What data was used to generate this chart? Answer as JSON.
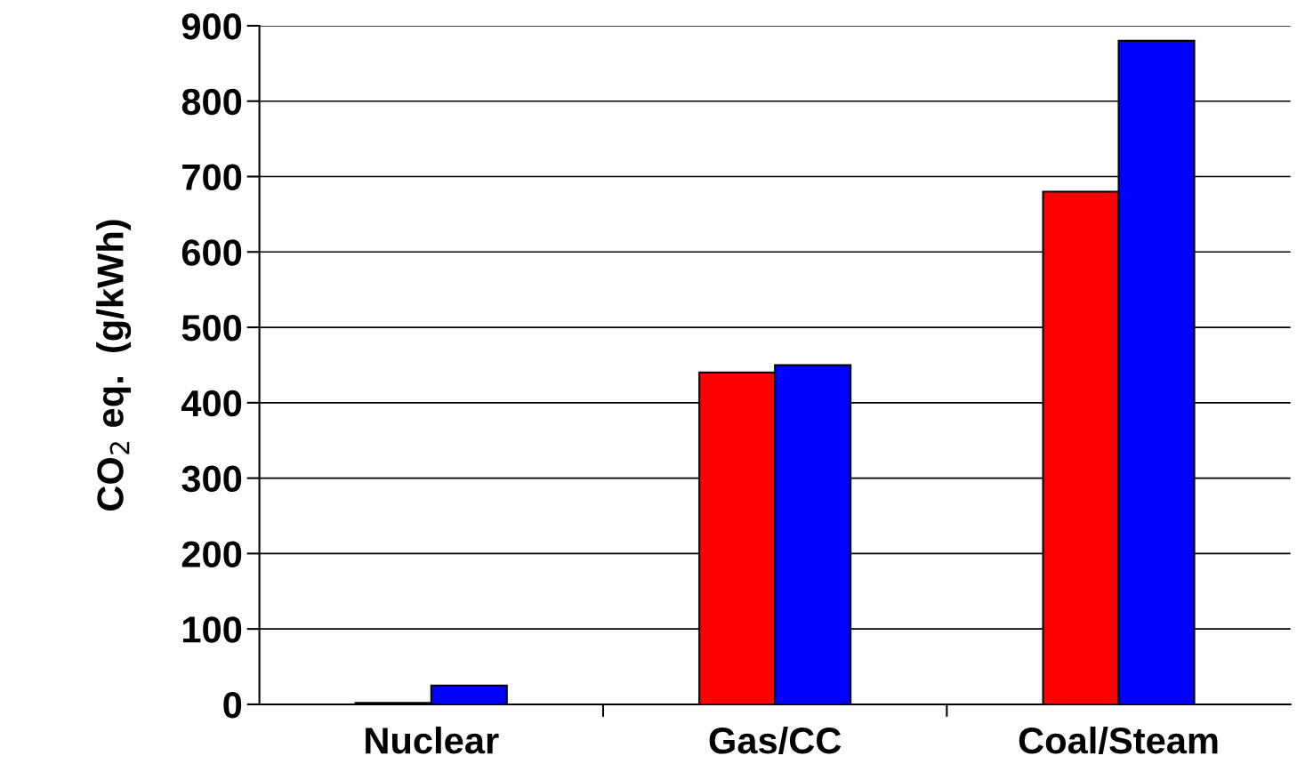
{
  "chart_data": {
    "type": "bar",
    "ylabel": "CO$_{2}$ eq.  (g/kWh)",
    "categories": [
      "Nuclear",
      "Gas/CC",
      "Coal/Steam"
    ],
    "series": [
      {
        "color": "#ff0000",
        "values": [
          2,
          440,
          680
        ]
      },
      {
        "color": "#0000ff",
        "values": [
          25,
          450,
          880
        ]
      }
    ],
    "ylim": [
      0,
      900
    ],
    "yticks": [
      0,
      100,
      200,
      300,
      400,
      500,
      600,
      700,
      800,
      900
    ],
    "grid": "y",
    "legend": false
  }
}
